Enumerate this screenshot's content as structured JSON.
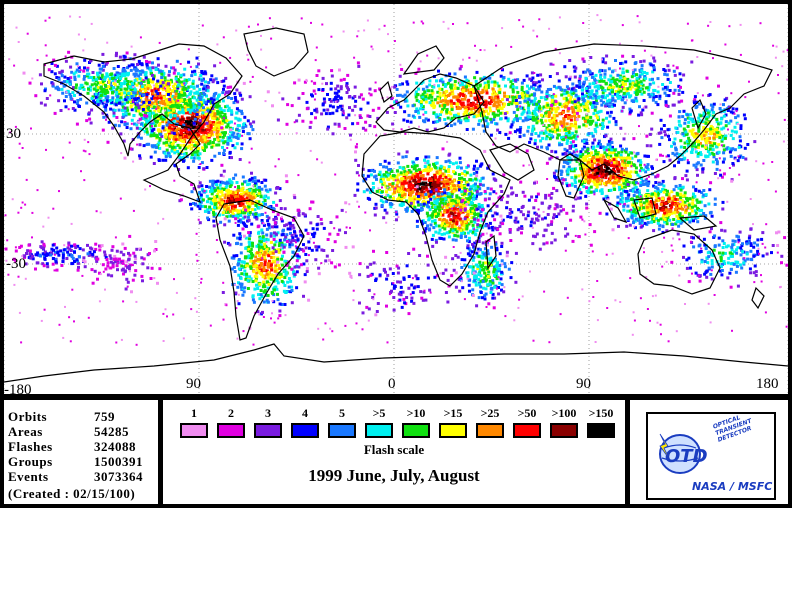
{
  "map": {
    "lat_labels": [
      "30",
      "-30"
    ],
    "lon_labels": [
      "-180",
      "-90",
      "0",
      "90",
      "180"
    ],
    "lon_labels_shown": [
      "-180",
      "90",
      "0",
      "90",
      "180"
    ],
    "land_color": "#ffffff",
    "coastline_color": "#000000",
    "gridline_style": "dotted"
  },
  "stats": {
    "orbits_label": "Orbits",
    "orbits_value": "759",
    "areas_label": "Areas",
    "areas_value": "54285",
    "flashes_label": "Flashes",
    "flashes_value": "324088",
    "groups_label": "Groups",
    "groups_value": "1500391",
    "events_label": "Events",
    "events_value": "3073364",
    "created": "(Created : 02/15/100)"
  },
  "flash_scale": {
    "title": "Flash scale",
    "bins": [
      {
        "label": "1",
        "color": "#f08cf0"
      },
      {
        "label": "2",
        "color": "#e000e0"
      },
      {
        "label": "3",
        "color": "#7a1ce0"
      },
      {
        "label": "4",
        "color": "#0000ff"
      },
      {
        "label": "5",
        "color": "#1a78ff"
      },
      {
        "label": ">5",
        "color": "#00f0f0"
      },
      {
        "label": ">10",
        "color": "#10e010"
      },
      {
        "label": ">15",
        "color": "#ffff00"
      },
      {
        "label": ">25",
        "color": "#ff8800"
      },
      {
        "label": ">50",
        "color": "#ff0000"
      },
      {
        "label": ">100",
        "color": "#8a0000"
      },
      {
        "label": ">150",
        "color": "#000000"
      }
    ]
  },
  "period": "1999 June, July, August",
  "logo": {
    "mark_text": "OTD",
    "arc_text": "OPTICAL TRANSIENT DETECTOR",
    "agency": "NASA / MSFC",
    "brand_color": "#1a3cc0"
  }
}
